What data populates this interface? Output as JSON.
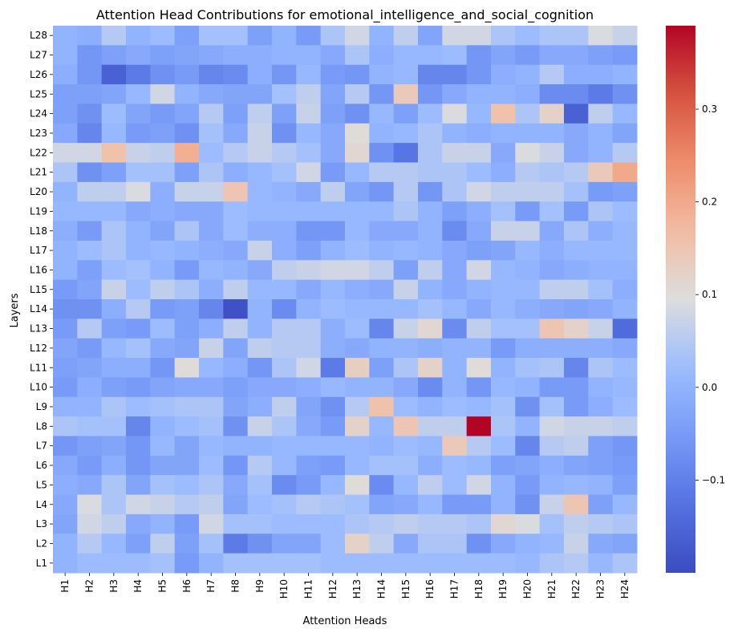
{
  "chart_data": {
    "type": "heatmap",
    "title": "Attention Head Contributions for emotional_intelligence_and_social_cognition",
    "xlabel": "Attention Heads",
    "ylabel": "Layers",
    "x_categories": [
      "H1",
      "H2",
      "H3",
      "H4",
      "H5",
      "H6",
      "H7",
      "H8",
      "H9",
      "H10",
      "H11",
      "H12",
      "H13",
      "H14",
      "H15",
      "H16",
      "H17",
      "H18",
      "H19",
      "H20",
      "H21",
      "H22",
      "H23",
      "H24"
    ],
    "y_categories": [
      "L28",
      "L27",
      "L26",
      "L25",
      "L24",
      "L23",
      "L22",
      "L21",
      "L20",
      "L19",
      "L18",
      "L17",
      "L16",
      "L15",
      "L14",
      "L13",
      "L12",
      "L11",
      "L10",
      "L9",
      "L8",
      "L7",
      "L6",
      "L5",
      "L4",
      "L3",
      "L2",
      "L1"
    ],
    "colormap": "coolwarm",
    "vmin": -0.2,
    "vmax": 0.39,
    "colorbar_ticks": [
      0.3,
      0.2,
      0.1,
      0.0,
      -0.1
    ],
    "colorbar_tick_labels": [
      "0.3",
      "0.2",
      "0.1",
      "0.0",
      "−0.1"
    ],
    "values": [
      [
        0.0,
        -0.01,
        0.05,
        0.0,
        0.02,
        -0.04,
        0.03,
        0.03,
        -0.04,
        0.0,
        -0.05,
        0.04,
        0.08,
        0.0,
        0.06,
        -0.03,
        0.08,
        0.08,
        0.04,
        0.02,
        0.04,
        0.04,
        0.09,
        0.07
      ],
      [
        0.0,
        -0.06,
        -0.04,
        -0.02,
        -0.04,
        -0.03,
        -0.02,
        -0.01,
        -0.01,
        0.0,
        0.0,
        -0.02,
        0.04,
        -0.01,
        0.01,
        0.01,
        0.02,
        -0.06,
        -0.03,
        -0.05,
        -0.02,
        -0.02,
        -0.04,
        -0.05
      ],
      [
        -0.01,
        -0.06,
        -0.16,
        -0.11,
        -0.07,
        -0.05,
        -0.09,
        -0.08,
        -0.01,
        -0.06,
        0.01,
        -0.05,
        -0.06,
        0.0,
        0.01,
        -0.09,
        -0.09,
        -0.06,
        -0.01,
        0.0,
        0.05,
        -0.01,
        -0.01,
        0.0
      ],
      [
        -0.04,
        -0.04,
        -0.03,
        0.01,
        0.08,
        0.0,
        -0.02,
        -0.03,
        -0.03,
        0.03,
        0.06,
        -0.03,
        0.05,
        -0.06,
        0.14,
        -0.06,
        -0.02,
        0.0,
        0.0,
        -0.01,
        -0.08,
        -0.08,
        -0.11,
        -0.07
      ],
      [
        -0.04,
        -0.07,
        0.02,
        -0.03,
        -0.05,
        -0.03,
        0.05,
        -0.04,
        0.06,
        -0.04,
        0.07,
        -0.04,
        -0.07,
        0.01,
        -0.04,
        0.02,
        0.09,
        0.01,
        0.16,
        0.04,
        0.12,
        -0.16,
        0.06,
        0.01
      ],
      [
        -0.02,
        -0.09,
        0.01,
        -0.05,
        -0.04,
        -0.07,
        0.03,
        -0.02,
        0.07,
        -0.07,
        0.01,
        -0.02,
        0.1,
        0.0,
        0.01,
        0.04,
        0.0,
        -0.01,
        0.0,
        0.0,
        0.0,
        -0.02,
        0.0,
        -0.03
      ],
      [
        0.08,
        0.08,
        0.16,
        0.07,
        0.06,
        0.19,
        0.02,
        0.05,
        0.07,
        0.05,
        0.03,
        -0.02,
        0.11,
        -0.07,
        -0.12,
        0.04,
        0.07,
        0.07,
        -0.02,
        0.09,
        0.07,
        -0.02,
        0.0,
        0.05
      ],
      [
        0.04,
        -0.07,
        -0.04,
        0.03,
        0.03,
        -0.04,
        0.04,
        -0.01,
        0.01,
        0.03,
        0.08,
        -0.05,
        0.01,
        0.05,
        0.05,
        0.04,
        0.04,
        0.02,
        -0.01,
        0.05,
        0.04,
        0.05,
        0.14,
        0.2
      ],
      [
        0.0,
        0.06,
        0.06,
        0.09,
        -0.01,
        0.07,
        0.07,
        0.15,
        0.01,
        0.0,
        -0.02,
        0.06,
        -0.03,
        -0.06,
        0.05,
        -0.06,
        0.04,
        0.08,
        0.06,
        0.06,
        0.06,
        0.03,
        -0.05,
        -0.04
      ],
      [
        0.01,
        0.01,
        0.01,
        -0.02,
        -0.01,
        -0.02,
        -0.02,
        0.02,
        0.01,
        0.01,
        0.01,
        0.01,
        0.01,
        0.01,
        0.04,
        0.0,
        -0.04,
        -0.01,
        0.03,
        -0.05,
        0.03,
        -0.05,
        0.04,
        0.02
      ],
      [
        -0.01,
        -0.05,
        0.04,
        0.0,
        -0.03,
        0.04,
        -0.02,
        0.02,
        -0.01,
        -0.01,
        -0.06,
        -0.06,
        0.01,
        -0.02,
        -0.02,
        0.0,
        -0.08,
        -0.02,
        0.07,
        0.07,
        -0.02,
        0.04,
        -0.01,
        0.01
      ],
      [
        0.0,
        0.02,
        0.04,
        0.0,
        0.01,
        0.0,
        -0.01,
        -0.02,
        0.07,
        -0.01,
        -0.04,
        0.0,
        0.02,
        0.0,
        0.01,
        0.0,
        -0.02,
        -0.04,
        -0.03,
        0.01,
        -0.01,
        0.01,
        0.01,
        0.01
      ],
      [
        0.0,
        -0.04,
        0.02,
        0.03,
        0.0,
        -0.05,
        0.01,
        0.0,
        -0.02,
        0.06,
        0.07,
        0.08,
        0.08,
        0.06,
        -0.04,
        0.06,
        -0.02,
        0.08,
        0.01,
        0.0,
        -0.02,
        -0.01,
        0.0,
        0.0
      ],
      [
        -0.05,
        -0.03,
        0.07,
        0.02,
        0.06,
        0.04,
        -0.01,
        0.06,
        0.01,
        0.01,
        -0.02,
        0.01,
        -0.01,
        -0.02,
        0.07,
        0.0,
        -0.02,
        0.0,
        0.01,
        0.01,
        0.06,
        0.06,
        0.03,
        -0.01
      ],
      [
        -0.07,
        -0.07,
        -0.01,
        0.05,
        -0.05,
        -0.04,
        -0.09,
        -0.19,
        0.0,
        -0.08,
        0.0,
        0.02,
        0.01,
        0.01,
        0.01,
        0.03,
        0.01,
        -0.02,
        0.01,
        -0.01,
        -0.02,
        -0.03,
        -0.02,
        0.0
      ],
      [
        -0.05,
        0.05,
        -0.04,
        -0.05,
        0.02,
        -0.04,
        -0.01,
        0.06,
        0.0,
        0.05,
        0.05,
        -0.01,
        0.02,
        -0.09,
        0.07,
        0.11,
        -0.08,
        0.06,
        0.03,
        0.03,
        0.15,
        0.12,
        0.07,
        -0.14
      ],
      [
        -0.03,
        -0.05,
        0.01,
        0.03,
        -0.02,
        -0.03,
        0.07,
        -0.03,
        0.06,
        0.05,
        0.05,
        -0.01,
        -0.02,
        0.0,
        0.0,
        -0.01,
        0.0,
        0.0,
        -0.05,
        -0.01,
        -0.01,
        -0.01,
        -0.01,
        -0.02
      ],
      [
        -0.04,
        -0.03,
        -0.01,
        -0.01,
        -0.06,
        0.1,
        0.01,
        -0.01,
        -0.06,
        0.04,
        0.08,
        -0.11,
        0.13,
        -0.04,
        0.04,
        0.12,
        0.0,
        0.1,
        0.0,
        0.03,
        0.04,
        -0.09,
        0.04,
        0.02
      ],
      [
        -0.05,
        -0.01,
        -0.04,
        -0.05,
        -0.03,
        -0.02,
        -0.02,
        -0.04,
        -0.02,
        -0.02,
        -0.01,
        0.01,
        0.0,
        0.0,
        -0.02,
        -0.08,
        0.0,
        -0.06,
        0.01,
        0.0,
        -0.05,
        -0.05,
        0.0,
        0.01
      ],
      [
        0.0,
        0.0,
        0.04,
        0.02,
        0.03,
        0.04,
        0.04,
        -0.03,
        -0.01,
        0.06,
        -0.03,
        -0.07,
        0.05,
        0.16,
        0.02,
        0.0,
        0.02,
        0.01,
        0.03,
        -0.07,
        0.03,
        -0.05,
        -0.01,
        0.02
      ],
      [
        0.04,
        0.03,
        0.03,
        -0.09,
        0.0,
        0.02,
        0.03,
        -0.07,
        0.07,
        0.04,
        -0.02,
        -0.05,
        0.12,
        0.01,
        0.15,
        0.06,
        0.06,
        0.39,
        0.04,
        0.0,
        0.08,
        0.07,
        0.07,
        0.06
      ],
      [
        -0.06,
        -0.04,
        -0.03,
        -0.06,
        0.01,
        -0.03,
        0.01,
        0.0,
        0.0,
        0.01,
        0.01,
        0.01,
        0.01,
        0.0,
        0.02,
        0.01,
        0.14,
        0.05,
        0.02,
        -0.09,
        0.05,
        0.06,
        -0.04,
        -0.06
      ],
      [
        -0.02,
        -0.05,
        -0.01,
        -0.06,
        -0.03,
        -0.03,
        0.02,
        -0.06,
        0.05,
        0.01,
        -0.04,
        -0.05,
        0.01,
        0.03,
        0.03,
        -0.01,
        0.02,
        0.01,
        -0.04,
        -0.03,
        -0.01,
        -0.03,
        -0.04,
        -0.05
      ],
      [
        -0.01,
        -0.02,
        0.04,
        -0.03,
        0.03,
        0.02,
        0.04,
        -0.02,
        0.03,
        -0.08,
        -0.05,
        0.01,
        0.1,
        -0.08,
        0.01,
        0.06,
        0.02,
        0.08,
        0.0,
        -0.05,
        0.0,
        0.01,
        0.0,
        -0.04
      ],
      [
        -0.02,
        0.09,
        0.04,
        0.08,
        0.07,
        0.05,
        0.06,
        -0.03,
        0.02,
        0.03,
        0.05,
        0.04,
        0.03,
        -0.03,
        -0.02,
        0.01,
        -0.05,
        -0.05,
        0.0,
        -0.07,
        0.07,
        0.15,
        -0.04,
        0.01
      ],
      [
        -0.03,
        0.08,
        0.06,
        -0.02,
        0.0,
        -0.05,
        0.08,
        0.03,
        0.03,
        0.02,
        0.02,
        0.02,
        0.04,
        0.05,
        0.06,
        0.05,
        0.05,
        0.04,
        0.11,
        0.09,
        0.03,
        0.06,
        0.05,
        0.04
      ],
      [
        0.0,
        0.05,
        0.01,
        -0.04,
        0.06,
        -0.04,
        0.03,
        -0.11,
        -0.07,
        -0.03,
        -0.03,
        0.02,
        0.12,
        0.06,
        -0.02,
        0.04,
        0.04,
        -0.07,
        -0.02,
        0.0,
        0.01,
        0.07,
        -0.02,
        -0.03
      ],
      [
        0.0,
        0.02,
        0.02,
        0.02,
        0.03,
        -0.05,
        0.0,
        0.03,
        0.03,
        0.03,
        0.03,
        0.02,
        0.02,
        0.02,
        0.02,
        0.02,
        0.02,
        0.02,
        0.02,
        0.01,
        0.04,
        0.05,
        0.01,
        0.04
      ]
    ]
  }
}
